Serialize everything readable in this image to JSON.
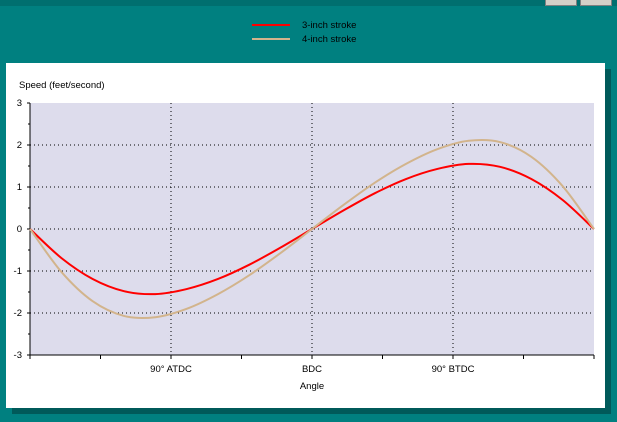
{
  "legend": {
    "items": [
      {
        "label": "3-inch stroke",
        "color": "#ff0000"
      },
      {
        "label": "4-inch stroke",
        "color": "#d2b48c"
      }
    ]
  },
  "chart_data": {
    "type": "line",
    "ylabel": "Speed (feet/second)",
    "xlabel": "Angle",
    "xlim": [
      0,
      360
    ],
    "ylim": [
      -3,
      3
    ],
    "yticks": [
      3,
      2,
      1,
      0,
      -1,
      -2,
      -3
    ],
    "x_tick_labels": [
      {
        "x": 90,
        "label": "90° ATDC"
      },
      {
        "x": 180,
        "label": "BDC"
      },
      {
        "x": 270,
        "label": "90° BTDC"
      }
    ],
    "grid": true,
    "plot_background": "#dddcec",
    "series": [
      {
        "name": "3-inch stroke",
        "color": "#ff0000",
        "x": [
          0,
          20,
          40,
          60,
          80,
          100,
          120,
          140,
          160,
          180,
          200,
          220,
          240,
          260,
          280,
          300,
          320,
          340,
          360
        ],
        "y": [
          0,
          -0.69,
          -1.19,
          -1.48,
          -1.55,
          -1.43,
          -1.19,
          -0.85,
          -0.44,
          0,
          0.44,
          0.85,
          1.19,
          1.43,
          1.55,
          1.48,
          1.19,
          0.69,
          0
        ]
      },
      {
        "name": "4-inch stroke",
        "color": "#d2b48c",
        "x": [
          0,
          20,
          40,
          60,
          80,
          100,
          120,
          140,
          160,
          180,
          200,
          220,
          240,
          260,
          280,
          300,
          320,
          340,
          360
        ],
        "y": [
          0,
          -1.02,
          -1.72,
          -2.07,
          -2.1,
          -1.9,
          -1.55,
          -1.1,
          -0.57,
          0,
          0.57,
          1.1,
          1.55,
          1.9,
          2.1,
          2.07,
          1.72,
          1.02,
          0
        ]
      }
    ]
  }
}
